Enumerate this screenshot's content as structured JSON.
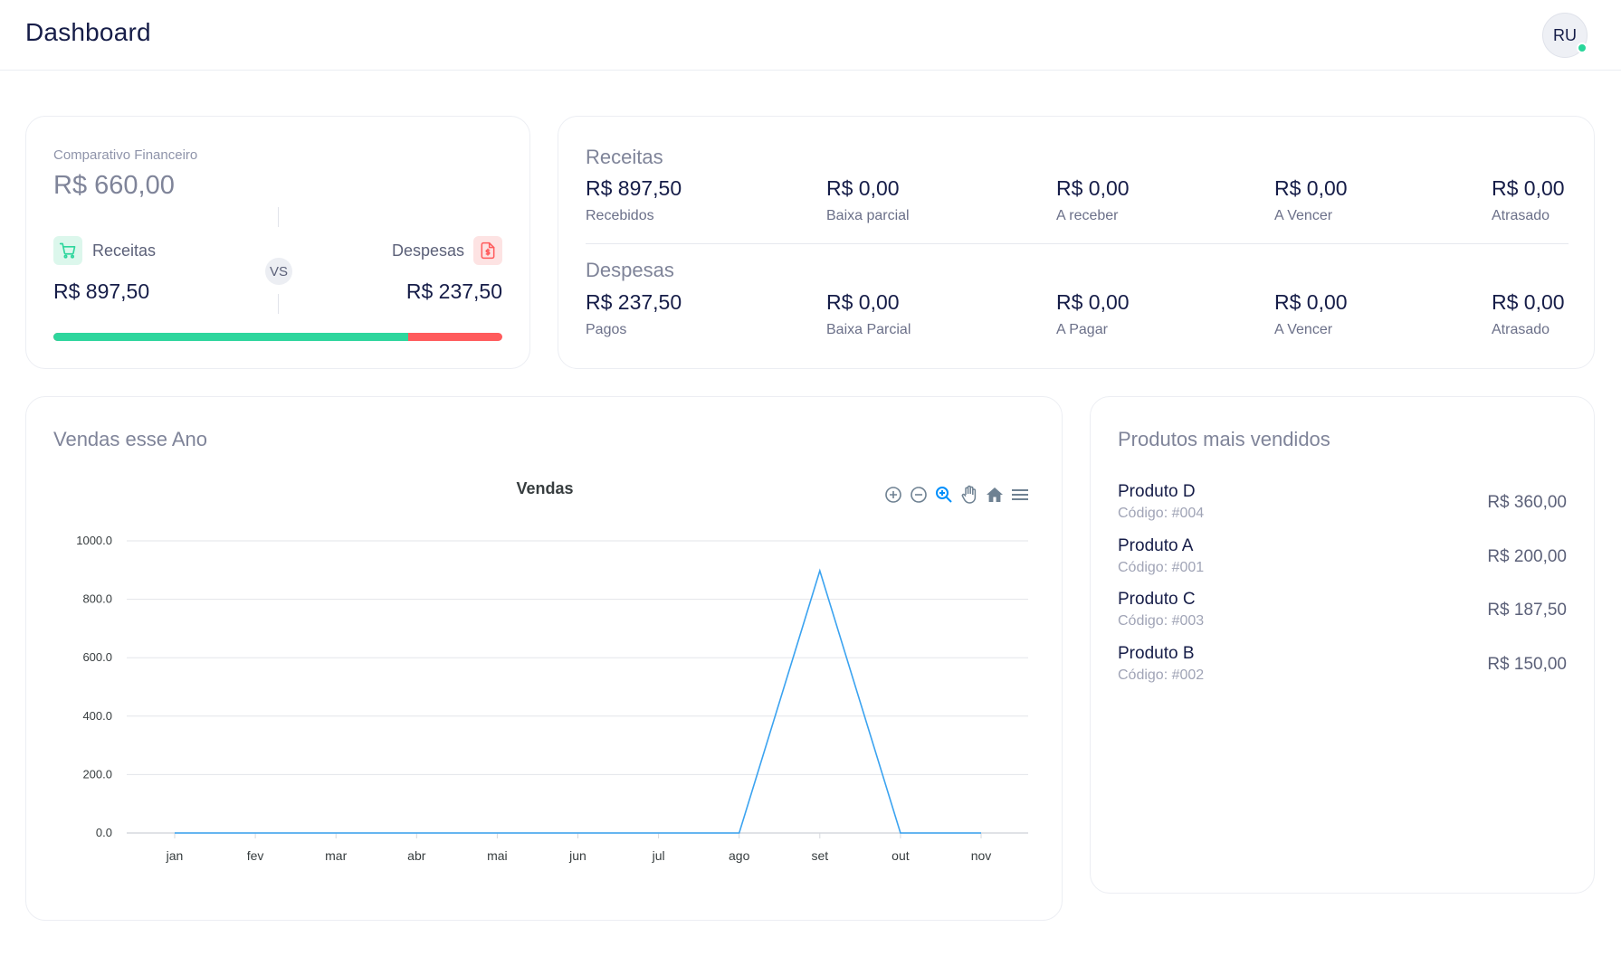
{
  "header": {
    "title": "Dashboard",
    "avatar_initials": "RU"
  },
  "comparativo": {
    "label": "Comparativo Financeiro",
    "total": "R$ 660,00",
    "receitas_label": "Receitas",
    "receitas_value": "R$ 897,50",
    "despesas_label": "Despesas",
    "despesas_value": "R$ 237,50",
    "vs": "VS",
    "receitas_fraction": 0.79,
    "colors": {
      "receitas": "#2ed69d",
      "despesas": "#ff5b5c"
    }
  },
  "resumo": {
    "receitas": {
      "title": "Receitas",
      "stats": [
        {
          "value": "R$ 897,50",
          "label": "Recebidos"
        },
        {
          "value": "R$ 0,00",
          "label": "Baixa parcial"
        },
        {
          "value": "R$ 0,00",
          "label": "A receber"
        },
        {
          "value": "R$ 0,00",
          "label": "A Vencer"
        },
        {
          "value": "R$ 0,00",
          "label": "Atrasado"
        }
      ]
    },
    "despesas": {
      "title": "Despesas",
      "stats": [
        {
          "value": "R$ 237,50",
          "label": "Pagos"
        },
        {
          "value": "R$ 0,00",
          "label": "Baixa Parcial"
        },
        {
          "value": "R$ 0,00",
          "label": "A Pagar"
        },
        {
          "value": "R$ 0,00",
          "label": "A Vencer"
        },
        {
          "value": "R$ 0,00",
          "label": "Atrasado"
        }
      ]
    }
  },
  "vendas": {
    "card_title": "Vendas esse Ano",
    "toolbar": [
      "zoom-in-icon",
      "zoom-out-icon",
      "selection-zoom-icon",
      "pan-hand-icon",
      "home-reset-icon",
      "menu-icon"
    ]
  },
  "chart_data": {
    "type": "line",
    "title": "Vendas",
    "categories": [
      "jan",
      "fev",
      "mar",
      "abr",
      "mai",
      "jun",
      "jul",
      "ago",
      "set",
      "out",
      "nov"
    ],
    "series": [
      {
        "values": [
          0,
          0,
          0,
          0,
          0,
          0,
          0,
          0,
          897.5,
          0,
          0
        ],
        "color": "#3ba3f0"
      }
    ],
    "ylim": [
      0,
      1000
    ],
    "yticks": [
      "0.0",
      "200.0",
      "400.0",
      "600.0",
      "800.0",
      "1000.0"
    ],
    "grid": true,
    "legend": "none"
  },
  "produtos": {
    "title": "Produtos mais vendidos",
    "items": [
      {
        "name": "Produto D",
        "code": "Código: #004",
        "price": "R$ 360,00"
      },
      {
        "name": "Produto A",
        "code": "Código: #001",
        "price": "R$ 200,00"
      },
      {
        "name": "Produto C",
        "code": "Código: #003",
        "price": "R$ 187,50"
      },
      {
        "name": "Produto B",
        "code": "Código: #002",
        "price": "R$ 150,00"
      }
    ]
  }
}
